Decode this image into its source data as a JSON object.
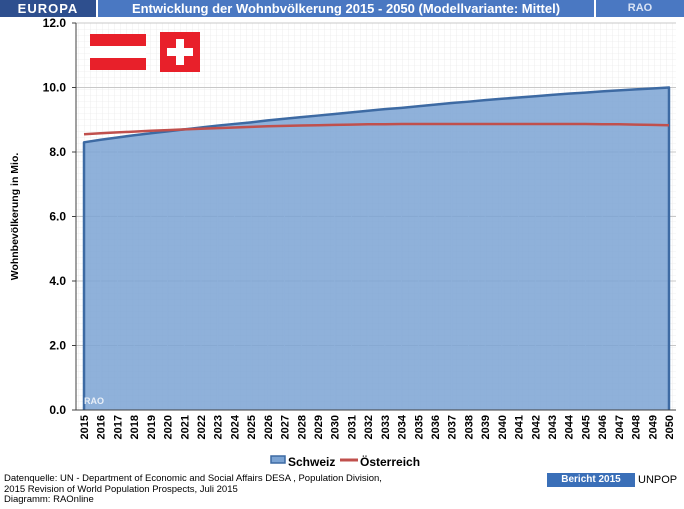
{
  "header": {
    "region": "EUROPA",
    "title": "Entwicklung der Wohnbvölkerung  2015 - 2050 (Modellvariante: Mittel)",
    "brand": "RAO"
  },
  "chart_data": {
    "type": "area",
    "title": "Entwicklung der Wohnbvölkerung  2015 - 2050 (Modellvariante: Mittel)",
    "xlabel": "",
    "ylabel": "Wohnbevölkerung in Mio.",
    "ylim": [
      0,
      12
    ],
    "yticks": [
      "0.0",
      "2.0",
      "4.0",
      "6.0",
      "8.0",
      "10.0",
      "12.0"
    ],
    "grid": true,
    "legend_position": "bottom",
    "categories": [
      "2015",
      "2016",
      "2017",
      "2018",
      "2019",
      "2020",
      "2021",
      "2022",
      "2023",
      "2024",
      "2025",
      "2026",
      "2027",
      "2028",
      "2029",
      "2030",
      "2031",
      "2032",
      "2033",
      "2034",
      "2035",
      "2036",
      "2037",
      "2038",
      "2039",
      "2040",
      "2041",
      "2042",
      "2043",
      "2044",
      "2045",
      "2046",
      "2047",
      "2048",
      "2049",
      "2050"
    ],
    "series": [
      {
        "name": "Schweiz",
        "type": "area",
        "color": "#7ba3d3",
        "stroke": "#3d6aa3",
        "values": [
          8.3,
          8.38,
          8.45,
          8.52,
          8.58,
          8.64,
          8.7,
          8.76,
          8.82,
          8.87,
          8.92,
          8.98,
          9.03,
          9.08,
          9.13,
          9.18,
          9.23,
          9.28,
          9.33,
          9.37,
          9.42,
          9.47,
          9.52,
          9.56,
          9.61,
          9.65,
          9.69,
          9.73,
          9.77,
          9.81,
          9.84,
          9.88,
          9.91,
          9.94,
          9.97,
          10.0
        ]
      },
      {
        "name": "Österreich",
        "type": "line",
        "color": "#c0504d",
        "values": [
          8.55,
          8.58,
          8.61,
          8.63,
          8.66,
          8.68,
          8.7,
          8.72,
          8.74,
          8.76,
          8.78,
          8.8,
          8.81,
          8.82,
          8.83,
          8.84,
          8.85,
          8.86,
          8.86,
          8.87,
          8.87,
          8.87,
          8.87,
          8.87,
          8.87,
          8.87,
          8.87,
          8.87,
          8.87,
          8.87,
          8.87,
          8.86,
          8.86,
          8.85,
          8.84,
          8.83
        ]
      }
    ],
    "watermark": "RAO"
  },
  "footer": {
    "source_line1": "Datenquelle: UN -  Department of Economic and Social Affairs DESA , Population Division,",
    "source_line2": "2015 Revision of World Population Prospects, Juli 2015",
    "source_line3": "Diagramm: RAOnline",
    "report": "Bericht 2015",
    "org": "UNPOP"
  }
}
